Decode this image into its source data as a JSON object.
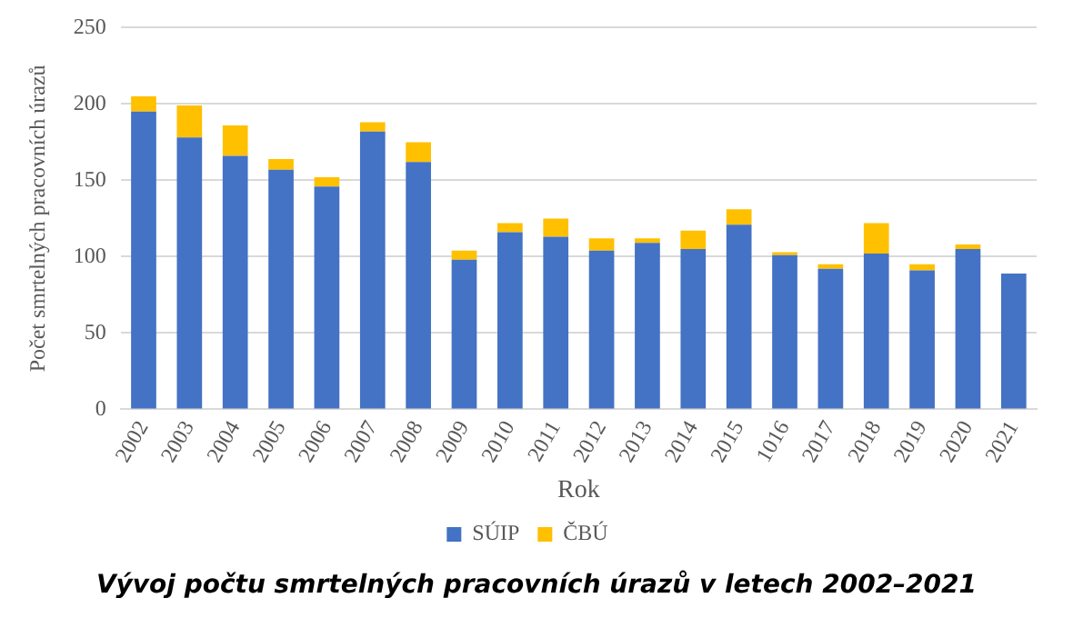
{
  "chart_data": {
    "type": "bar",
    "title": "Vývoj počtu smrtelných pracovních úrazů v letech 2002–2021",
    "xlabel": "Rok",
    "ylabel": "Počet smrtelných pracovních úrazů",
    "categories": [
      "2002",
      "2003",
      "2004",
      "2005",
      "2006",
      "2007",
      "2008",
      "2009",
      "2010",
      "2011",
      "2012",
      "2013",
      "2014",
      "2015",
      "1016",
      "2017",
      "2018",
      "2019",
      "2020",
      "2021"
    ],
    "series": [
      {
        "name": "SÚIP",
        "color": "#4472c4",
        "values": [
          195,
          178,
          166,
          157,
          146,
          182,
          162,
          98,
          116,
          113,
          104,
          109,
          105,
          121,
          101,
          92,
          102,
          91,
          105,
          89
        ]
      },
      {
        "name": "ČBÚ",
        "color": "#ffc000",
        "values": [
          10,
          21,
          20,
          7,
          6,
          6,
          13,
          6,
          6,
          12,
          8,
          3,
          12,
          10,
          2,
          3,
          20,
          4,
          3,
          0
        ]
      }
    ],
    "stacked": true,
    "ylim": [
      0,
      250
    ],
    "yticks": [
      0,
      50,
      100,
      150,
      200,
      250
    ],
    "grid": "y",
    "legend": "bottom"
  }
}
